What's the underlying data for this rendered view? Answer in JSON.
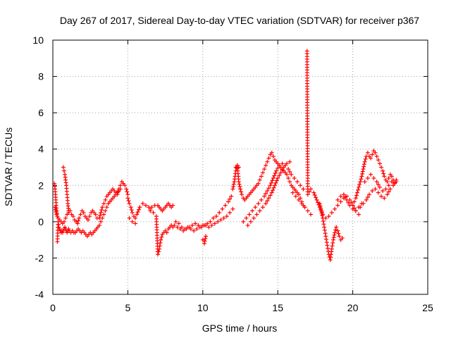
{
  "chart_data": {
    "type": "scatter",
    "title": "Day 267 of 2017, Sidereal Day-to-day VTEC variation (SDTVAR) for receiver p367",
    "xlabel": "GPS time / hours",
    "ylabel": "SDTVAR / TECUs",
    "xlim": [
      0,
      25
    ],
    "ylim": [
      -4,
      10
    ],
    "xticks": [
      "0",
      "5",
      "10",
      "15",
      "20",
      "25"
    ],
    "yticks": [
      "-4",
      "-2",
      "0",
      "2",
      "4",
      "6",
      "8",
      "10"
    ],
    "grid": true,
    "marker": "+",
    "color": "#ff0000",
    "series": [
      {
        "name": "SDTVAR",
        "x": [
          0.1,
          0.15,
          0.2,
          0.25,
          0.3,
          0.3,
          0.35,
          0.4,
          0.45,
          0.5,
          0.55,
          0.6,
          0.65,
          0.7,
          0.75,
          0.8,
          0.85,
          0.9,
          0.95,
          1.0,
          1.05,
          1.1,
          1.2,
          1.3,
          1.4,
          1.5,
          1.6,
          1.7,
          1.8,
          1.9,
          2.0,
          2.1,
          2.2,
          2.3,
          2.4,
          2.5,
          2.6,
          2.7,
          2.8,
          2.9,
          3.0,
          0.15,
          0.25,
          0.35,
          0.45,
          0.55,
          0.65,
          0.75,
          0.85,
          0.95,
          1.05,
          1.15,
          1.25,
          1.35,
          1.45,
          1.55,
          1.65,
          1.75,
          1.85,
          1.95,
          2.05,
          2.15,
          2.25,
          2.35,
          2.45,
          2.55,
          2.65,
          2.75,
          2.85,
          2.95,
          0.7,
          0.75,
          0.8,
          0.85,
          0.9,
          0.95,
          1.0,
          1.05,
          3.1,
          3.2,
          3.3,
          3.4,
          3.5,
          3.6,
          3.7,
          3.8,
          3.9,
          4.0,
          4.1,
          4.2,
          4.3,
          4.4,
          4.5,
          4.6,
          4.7,
          4.8,
          4.9,
          5.0,
          3.1,
          3.2,
          3.3,
          3.4,
          3.5,
          3.6,
          3.7,
          3.8,
          3.9,
          4.0,
          4.1,
          4.2,
          4.3,
          4.4,
          4.5,
          5.0,
          5.1,
          5.2,
          5.3,
          5.4,
          5.5,
          5.6,
          5.8,
          6.0,
          6.2,
          6.4,
          6.5,
          6.6,
          6.8,
          7.0,
          7.1,
          7.2,
          7.3,
          7.4,
          7.5,
          7.6,
          7.7,
          7.8,
          7.9,
          8.0,
          5.1,
          5.3,
          5.5,
          6.5,
          6.7,
          6.9,
          7.0,
          7.1,
          7.2,
          7.3,
          7.4,
          7.5,
          7.6,
          7.7,
          7.8,
          7.9,
          8.0,
          8.1,
          8.3,
          8.5,
          8.7,
          8.9,
          9.1,
          9.3,
          9.5,
          9.7,
          9.9,
          10.1,
          10.3,
          10.5,
          10.7,
          10.9,
          11.1,
          11.3,
          11.5,
          11.7,
          11.9,
          8.2,
          8.4,
          8.6,
          8.8,
          9.0,
          9.2,
          9.4,
          9.6,
          9.8,
          10.0,
          10.2,
          10.4,
          10.6,
          10.8,
          11.0,
          11.2,
          11.4,
          11.6,
          11.8,
          12.0,
          10.0,
          10.1,
          10.2,
          12.0,
          12.1,
          12.2,
          12.3,
          12.4,
          12.5,
          12.6,
          12.7,
          12.8,
          12.9,
          13.0,
          13.1,
          13.2,
          13.3,
          13.4,
          13.5,
          13.6,
          13.7,
          13.8,
          13.9,
          14.0,
          14.1,
          14.2,
          14.3,
          14.4,
          14.5,
          14.6,
          14.7,
          14.8,
          14.9,
          15.0,
          15.1,
          15.2,
          15.3,
          15.4,
          15.5,
          15.6,
          15.7,
          15.8,
          15.9,
          16.0,
          16.1,
          16.2,
          16.3,
          16.4,
          16.5,
          16.6,
          16.7,
          16.8,
          12.7,
          12.9,
          13.1,
          13.3,
          13.5,
          13.7,
          13.9,
          14.1,
          14.3,
          14.5,
          14.7,
          14.9,
          15.1,
          15.3,
          15.5,
          15.7,
          15.9,
          16.1,
          16.3,
          16.5,
          16.7,
          13.0,
          13.2,
          13.4,
          13.6,
          13.8,
          14.0,
          14.2,
          14.4,
          14.6,
          14.8,
          15.0,
          15.2,
          15.4,
          15.6,
          15.8,
          12.2,
          12.3,
          12.4,
          16.0,
          16.2,
          16.4,
          16.6,
          16.8,
          17.0,
          17.2,
          16.95,
          17.0,
          17.2,
          17.4,
          17.6,
          17.8,
          18.0,
          18.2,
          18.4,
          18.6,
          18.8,
          19.0,
          19.2,
          19.4,
          19.6,
          19.8,
          20.0,
          20.2,
          20.4,
          17.8,
          17.9,
          18.0,
          18.1,
          18.2,
          18.3,
          18.4,
          18.5,
          18.6,
          18.7,
          18.8,
          18.9,
          19.0,
          19.1,
          19.2,
          19.3,
          19.0,
          19.2,
          19.4,
          19.6,
          19.8,
          20.0,
          20.2,
          20.4,
          20.6,
          20.0,
          20.1,
          20.2,
          20.3,
          20.4,
          20.5,
          20.6,
          20.7,
          20.8,
          20.9,
          21.0,
          21.1,
          21.2,
          21.3,
          21.4,
          21.5,
          21.6,
          21.7,
          21.8,
          21.9,
          22.0,
          22.1,
          22.2,
          22.3,
          22.4,
          22.5,
          22.6,
          22.7,
          22.8,
          22.9,
          20.5,
          20.7,
          20.9,
          21.1,
          21.3,
          21.5,
          21.7,
          21.9,
          22.1,
          22.3,
          22.5,
          22.7,
          22.9,
          20.8,
          21.0,
          21.2,
          21.4,
          21.6,
          21.8,
          22.0,
          22.2,
          22.4,
          22.6
        ],
        "y": [
          2.1,
          1.8,
          1.2,
          0.6,
          0.3,
          -1.1,
          0.0,
          -0.3,
          -0.4,
          -0.5,
          -0.6,
          -0.5,
          -0.6,
          -0.5,
          -0.4,
          -0.3,
          -0.4,
          -0.5,
          -0.6,
          -0.5,
          -0.4,
          -0.5,
          -0.6,
          -0.5,
          -0.6,
          -0.6,
          -0.5,
          -0.4,
          -0.5,
          -0.6,
          -0.5,
          -0.6,
          -0.7,
          -0.8,
          -0.7,
          -0.6,
          -0.7,
          -0.6,
          -0.5,
          -0.4,
          -0.3,
          0.8,
          0.4,
          0.2,
          0.1,
          0.0,
          -0.1,
          0.0,
          0.2,
          0.4,
          0.5,
          0.6,
          0.4,
          0.3,
          0.1,
          0.0,
          -0.1,
          0.2,
          0.4,
          0.6,
          0.5,
          0.3,
          0.2,
          0.1,
          0.3,
          0.5,
          0.6,
          0.5,
          0.4,
          0.2,
          3.0,
          2.8,
          2.6,
          2.3,
          2.0,
          1.5,
          1.0,
          0.6,
          0.2,
          0.5,
          0.8,
          1.0,
          1.2,
          1.4,
          1.5,
          1.6,
          1.7,
          1.8,
          1.7,
          1.6,
          1.5,
          1.8,
          2.0,
          2.2,
          2.1,
          2.0,
          1.8,
          1.5,
          -0.2,
          0.0,
          0.2,
          0.4,
          0.6,
          0.8,
          1.0,
          1.1,
          1.2,
          1.3,
          1.4,
          1.5,
          1.6,
          1.7,
          1.8,
          1.3,
          1.0,
          0.8,
          0.5,
          0.3,
          0.2,
          0.4,
          0.8,
          1.0,
          0.9,
          0.8,
          0.7,
          0.8,
          0.9,
          0.9,
          0.8,
          0.7,
          0.6,
          0.7,
          0.8,
          0.9,
          1.0,
          0.9,
          0.8,
          0.9,
          0.2,
          0.0,
          -0.1,
          0.6,
          0.5,
          0.3,
          -1.8,
          -1.5,
          -1.0,
          -0.7,
          -0.6,
          -0.5,
          -0.6,
          -0.4,
          -0.3,
          -0.2,
          -0.3,
          -0.2,
          -0.3,
          -0.4,
          -0.5,
          -0.4,
          -0.3,
          -0.2,
          -0.1,
          -0.2,
          -0.3,
          -0.2,
          -0.1,
          0.0,
          0.2,
          0.3,
          0.5,
          0.7,
          0.9,
          1.1,
          1.4,
          0.0,
          -0.1,
          -0.3,
          -0.4,
          -0.3,
          -0.4,
          -0.5,
          -0.4,
          -0.3,
          -0.2,
          -0.2,
          -0.3,
          -0.2,
          -0.1,
          0.0,
          0.1,
          0.2,
          0.3,
          0.5,
          0.7,
          -1.0,
          -1.2,
          -0.8,
          1.8,
          2.2,
          2.8,
          3.1,
          2.2,
          1.8,
          1.5,
          1.3,
          1.2,
          1.3,
          1.4,
          1.5,
          1.6,
          1.7,
          1.8,
          1.9,
          2.0,
          2.1,
          2.3,
          2.5,
          2.7,
          2.9,
          3.1,
          3.3,
          3.5,
          3.7,
          3.8,
          3.6,
          3.4,
          3.3,
          3.2,
          3.1,
          3.0,
          2.9,
          2.8,
          2.7,
          2.6,
          2.4,
          2.2,
          2.0,
          1.9,
          1.8,
          1.7,
          1.6,
          1.5,
          1.3,
          1.1,
          0.9,
          0.8,
          0.0,
          0.2,
          0.4,
          0.6,
          0.8,
          1.0,
          1.2,
          1.4,
          1.7,
          2.0,
          2.4,
          2.8,
          3.1,
          3.2,
          3.1,
          2.9,
          2.6,
          2.4,
          2.2,
          2.0,
          1.8,
          -0.2,
          0.0,
          0.2,
          0.4,
          0.6,
          0.8,
          1.0,
          1.3,
          1.6,
          2.0,
          2.4,
          2.7,
          3.0,
          3.2,
          3.3,
          3.0,
          3.1,
          3.0,
          1.6,
          1.4,
          1.2,
          1.0,
          0.8,
          0.6,
          0.4,
          9.4,
          1.5,
          1.8,
          1.6,
          1.2,
          0.8,
          0.4,
          0.2,
          0.3,
          0.5,
          0.7,
          0.9,
          1.1,
          1.3,
          1.4,
          1.2,
          0.9,
          0.6,
          0.4,
          1.0,
          0.6,
          0.2,
          -0.3,
          -0.8,
          -1.3,
          -1.8,
          -2.1,
          -1.5,
          -1.0,
          -0.6,
          -0.3,
          -0.5,
          -0.8,
          -1.0,
          -0.9,
          1.2,
          1.4,
          1.5,
          1.2,
          0.9,
          0.7,
          0.6,
          0.8,
          1.0,
          0.9,
          1.1,
          1.3,
          1.6,
          1.9,
          2.2,
          2.5,
          2.9,
          3.3,
          3.6,
          3.8,
          3.6,
          3.5,
          3.7,
          3.9,
          3.8,
          3.6,
          3.4,
          3.2,
          3.0,
          2.8,
          2.5,
          2.3,
          2.2,
          2.4,
          2.6,
          2.5,
          2.3,
          2.1,
          2.2,
          0.8,
          1.0,
          1.2,
          1.5,
          1.7,
          1.8,
          1.6,
          1.4,
          1.3,
          1.5,
          1.8,
          2.0,
          2.3,
          2.2,
          2.4,
          2.6,
          2.4,
          2.2,
          1.9,
          1.7,
          1.8,
          2.0,
          2.2
        ]
      }
    ]
  }
}
